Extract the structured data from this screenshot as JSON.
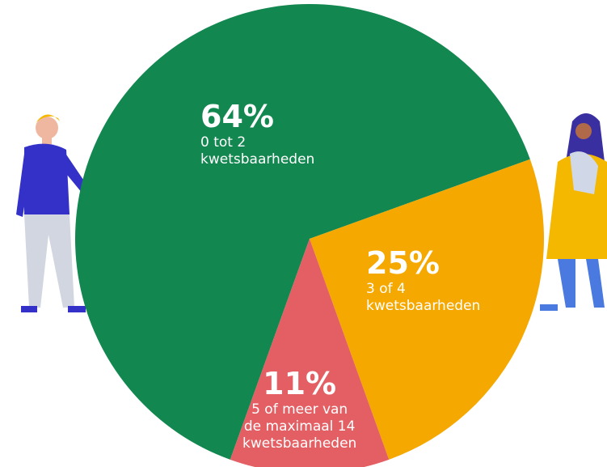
{
  "chart_data": {
    "type": "pie",
    "categories": [
      "0 tot 2\nkwetsbaarheden",
      "3 of 4\nkwetsbaarheden",
      "5 of meer van\nde maximaal 14\nkwetsbaarheden"
    ],
    "values": [
      64,
      25,
      11
    ],
    "value_labels": [
      "64%",
      "25%",
      "11%"
    ],
    "colors": [
      "#138750",
      "#f5a800",
      "#e35f63"
    ]
  }
}
